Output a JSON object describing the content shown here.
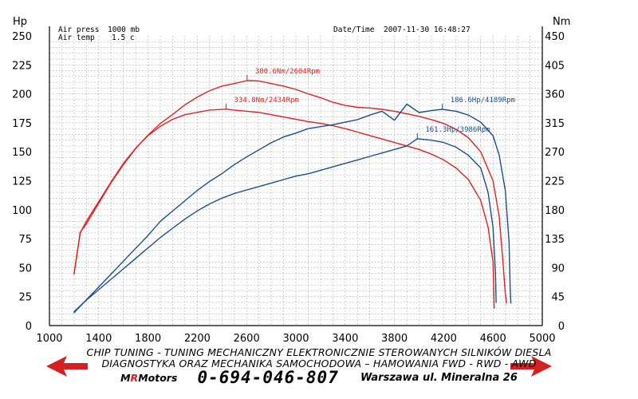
{
  "chart_data": {
    "type": "line",
    "title": "",
    "xlabel": "",
    "xlim": [
      1000,
      5000
    ],
    "x_ticks": [
      "1000",
      "1400",
      "1800",
      "2200",
      "2600",
      "3000",
      "3400",
      "3800",
      "4200",
      "4600",
      "5000"
    ],
    "y_left": {
      "label": "Hp",
      "ylim": [
        0,
        250
      ],
      "ticks": [
        "0",
        "25",
        "50",
        "75",
        "100",
        "125",
        "150",
        "175",
        "200",
        "225",
        "250"
      ]
    },
    "y_right": {
      "label": "Nm",
      "ylim": [
        0,
        450
      ],
      "ticks": [
        "0",
        "45",
        "90",
        "135",
        "180",
        "225",
        "270",
        "315",
        "360",
        "405",
        "450"
      ]
    },
    "grid": true,
    "series": [
      {
        "name": "",
        "axis": "right",
        "color": "#e32020",
        "points": [
          [
            1200,
            80
          ],
          [
            1250,
            145
          ],
          [
            1300,
            158
          ],
          [
            1400,
            190
          ],
          [
            1500,
            222
          ],
          [
            1600,
            250
          ],
          [
            1700,
            275
          ],
          [
            1800,
            296
          ],
          [
            1900,
            314
          ],
          [
            2000,
            328
          ],
          [
            2100,
            343
          ],
          [
            2200,
            355
          ],
          [
            2300,
            365
          ],
          [
            2400,
            372
          ],
          [
            2500,
            376
          ],
          [
            2604,
            380.6
          ],
          [
            2700,
            380
          ],
          [
            2800,
            376
          ],
          [
            2900,
            372
          ],
          [
            3000,
            367
          ],
          [
            3100,
            360
          ],
          [
            3200,
            354
          ],
          [
            3300,
            347
          ],
          [
            3400,
            342
          ],
          [
            3500,
            339
          ],
          [
            3600,
            338
          ],
          [
            3700,
            336
          ],
          [
            3800,
            333
          ],
          [
            3900,
            329
          ],
          [
            4000,
            325
          ],
          [
            4100,
            320
          ],
          [
            4200,
            314
          ],
          [
            4300,
            305
          ],
          [
            4400,
            292
          ],
          [
            4500,
            270
          ],
          [
            4600,
            225
          ],
          [
            4650,
            170
          ],
          [
            4680,
            100
          ],
          [
            4700,
            50
          ],
          [
            4710,
            35
          ]
        ]
      },
      {
        "name": "",
        "axis": "left",
        "color": "#e32020",
        "points": [
          [
            1200,
            45
          ],
          [
            1250,
            80
          ],
          [
            1300,
            90
          ],
          [
            1400,
            107
          ],
          [
            1500,
            124
          ],
          [
            1600,
            140
          ],
          [
            1700,
            153
          ],
          [
            1800,
            164
          ],
          [
            1900,
            172
          ],
          [
            2000,
            178
          ],
          [
            2100,
            182
          ],
          [
            2200,
            184
          ],
          [
            2300,
            186
          ],
          [
            2434,
            186.8
          ],
          [
            2500,
            186
          ],
          [
            2600,
            185
          ],
          [
            2700,
            184
          ],
          [
            2800,
            182
          ],
          [
            2900,
            180
          ],
          [
            3000,
            178
          ],
          [
            3100,
            176
          ],
          [
            3200,
            174.5
          ],
          [
            3300,
            172.5
          ],
          [
            3400,
            170
          ],
          [
            3500,
            167
          ],
          [
            3600,
            164
          ],
          [
            3700,
            161
          ],
          [
            3800,
            158
          ],
          [
            3900,
            155
          ],
          [
            4000,
            152
          ],
          [
            4100,
            148
          ],
          [
            4200,
            143
          ],
          [
            4300,
            136
          ],
          [
            4400,
            126
          ],
          [
            4500,
            108
          ],
          [
            4560,
            85
          ],
          [
            4600,
            55
          ],
          [
            4610,
            15
          ]
        ]
      },
      {
        "name": "",
        "axis": "right",
        "color": "#1a4f8c",
        "points": [
          [
            1200,
            20
          ],
          [
            1300,
            40
          ],
          [
            1400,
            60
          ],
          [
            1500,
            80
          ],
          [
            1600,
            100
          ],
          [
            1700,
            120
          ],
          [
            1800,
            140
          ],
          [
            1900,
            162
          ],
          [
            2000,
            178
          ],
          [
            2100,
            194
          ],
          [
            2200,
            210
          ],
          [
            2300,
            224
          ],
          [
            2400,
            236
          ],
          [
            2500,
            250
          ],
          [
            2600,
            262
          ],
          [
            2700,
            273
          ],
          [
            2800,
            284
          ],
          [
            2900,
            293
          ],
          [
            3000,
            299
          ],
          [
            3100,
            306
          ],
          [
            3200,
            309
          ],
          [
            3300,
            312
          ],
          [
            3400,
            316
          ],
          [
            3500,
            320
          ],
          [
            3600,
            327
          ],
          [
            3700,
            333
          ],
          [
            3800,
            319
          ],
          [
            3900,
            344
          ],
          [
            4000,
            331
          ],
          [
            4100,
            334
          ],
          [
            4189,
            335.9
          ],
          [
            4300,
            333
          ],
          [
            4400,
            327
          ],
          [
            4500,
            316
          ],
          [
            4600,
            295
          ],
          [
            4650,
            265
          ],
          [
            4700,
            210
          ],
          [
            4730,
            130
          ],
          [
            4740,
            55
          ],
          [
            4745,
            35
          ]
        ]
      },
      {
        "name": "",
        "axis": "left",
        "color": "#1a4f8c",
        "points": [
          [
            1200,
            12
          ],
          [
            1300,
            22
          ],
          [
            1400,
            31
          ],
          [
            1500,
            40
          ],
          [
            1600,
            49
          ],
          [
            1700,
            58
          ],
          [
            1800,
            67
          ],
          [
            1900,
            76
          ],
          [
            2000,
            84
          ],
          [
            2100,
            92
          ],
          [
            2200,
            99
          ],
          [
            2300,
            105
          ],
          [
            2400,
            110
          ],
          [
            2500,
            114
          ],
          [
            2600,
            117
          ],
          [
            2700,
            120
          ],
          [
            2800,
            123
          ],
          [
            2900,
            126
          ],
          [
            3000,
            129
          ],
          [
            3100,
            131
          ],
          [
            3200,
            134
          ],
          [
            3300,
            137
          ],
          [
            3400,
            140
          ],
          [
            3500,
            143
          ],
          [
            3600,
            146
          ],
          [
            3700,
            149
          ],
          [
            3800,
            152
          ],
          [
            3900,
            155
          ],
          [
            3986,
            161.3
          ],
          [
            4100,
            160
          ],
          [
            4200,
            158
          ],
          [
            4300,
            154
          ],
          [
            4400,
            147
          ],
          [
            4500,
            136
          ],
          [
            4560,
            115
          ],
          [
            4600,
            85
          ],
          [
            4620,
            45
          ],
          [
            4625,
            20
          ]
        ]
      }
    ],
    "annotations": [
      {
        "text": "380.6Nm/2604Rpm",
        "color": "#e32020",
        "x": 2604,
        "y": 380.6,
        "axis": "right"
      },
      {
        "text": "334.8Nm/2434Rpm",
        "color": "#e32020",
        "x": 2434,
        "y": 186.8,
        "axis": "left"
      },
      {
        "text": "186.6Hp/4189Rpm",
        "color": "#1a4f8c",
        "x": 4189,
        "y": 335.9,
        "axis": "right"
      },
      {
        "text": "161.3Hp/3986Rpm",
        "color": "#1a4f8c",
        "x": 3986,
        "y": 161.3,
        "axis": "left"
      }
    ]
  },
  "conditions": {
    "air_press_label": "Air press",
    "air_press_value": "1000 mb",
    "air_temp_label": "Air temp",
    "air_temp_value": "1.5 c",
    "datetime_label": "Date/Time",
    "datetime_value": "2007-11-30 16:48:27"
  },
  "footer": {
    "line1": "CHIP TUNING - TUNING MECHANICZNY ELEKTRONICZNIE STEROWANYCH SILNIKÓW DIESLA",
    "line2": "DIAGNOSTYKA ORAZ MECHANIKA SAMOCHODOWA – HAMOWANIA FWD - RWD - AWD",
    "brand_m": "M",
    "brand_r": "R",
    "brand_rest": " Motors",
    "phone": "0-694-046-807",
    "address": "Warszawa ul. Mineralna 26",
    "arrow_color": "#d42020"
  }
}
